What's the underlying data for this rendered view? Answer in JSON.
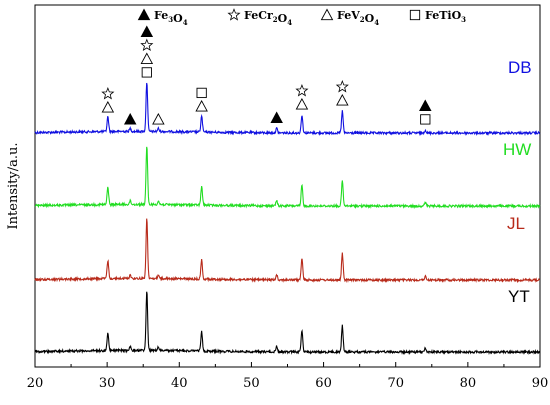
{
  "chart_data": {
    "type": "line",
    "title": "",
    "xlabel": "",
    "ylabel": "Intensity/a.u.",
    "xlim": [
      20,
      90
    ],
    "x_ticks": [
      20,
      30,
      40,
      50,
      60,
      70,
      80,
      90
    ],
    "y_ticks_shown": false,
    "grid": false,
    "legend": [
      {
        "symbol": "filled-triangle",
        "base": "Fe",
        "sub1": "3",
        "mid": "O",
        "sub2": "4"
      },
      {
        "symbol": "star",
        "base": "FeCr",
        "sub1": "2",
        "mid": "O",
        "sub2": "4"
      },
      {
        "symbol": "open-triangle",
        "base": "FeV",
        "sub1": "2",
        "mid": "O",
        "sub2": "4"
      },
      {
        "symbol": "open-square",
        "base": "FeTiO",
        "sub1": "3",
        "mid": "",
        "sub2": ""
      }
    ],
    "peaks": [
      {
        "x": 30.1,
        "h": 0.3
      },
      {
        "x": 33.2,
        "h": 0.06
      },
      {
        "x": 35.5,
        "h": 1.0
      },
      {
        "x": 37.1,
        "h": 0.06
      },
      {
        "x": 43.1,
        "h": 0.32
      },
      {
        "x": 53.5,
        "h": 0.09
      },
      {
        "x": 57.0,
        "h": 0.36
      },
      {
        "x": 62.6,
        "h": 0.44
      },
      {
        "x": 74.1,
        "h": 0.06
      }
    ],
    "series": [
      {
        "name": "DB",
        "color": "#1010e0",
        "baseline": 0.0,
        "peak_scale": 0.0
      },
      {
        "name": "HW",
        "color": "#22dd22",
        "baseline": 0.0,
        "peak_scale": 0.0
      },
      {
        "name": "JL",
        "color": "#b82a1a",
        "baseline": 0.0,
        "peak_scale": 0.0
      },
      {
        "name": "YT",
        "color": "#000000",
        "baseline": 0.0,
        "peak_scale": 0.0
      }
    ],
    "markers": [
      {
        "x": 30.1,
        "symbols": [
          "open-triangle",
          "star"
        ]
      },
      {
        "x": 33.2,
        "symbols": [
          "filled-triangle"
        ]
      },
      {
        "x": 35.5,
        "symbols": [
          "open-square",
          "open-triangle",
          "star",
          "filled-triangle"
        ]
      },
      {
        "x": 37.1,
        "symbols": [
          "open-triangle"
        ]
      },
      {
        "x": 43.1,
        "symbols": [
          "open-triangle",
          "open-square"
        ]
      },
      {
        "x": 53.5,
        "symbols": [
          "filled-triangle"
        ]
      },
      {
        "x": 57.0,
        "symbols": [
          "open-triangle",
          "star"
        ]
      },
      {
        "x": 62.6,
        "symbols": [
          "open-triangle",
          "star"
        ]
      },
      {
        "x": 74.1,
        "symbols": [
          "open-square",
          "filled-triangle"
        ]
      }
    ]
  }
}
